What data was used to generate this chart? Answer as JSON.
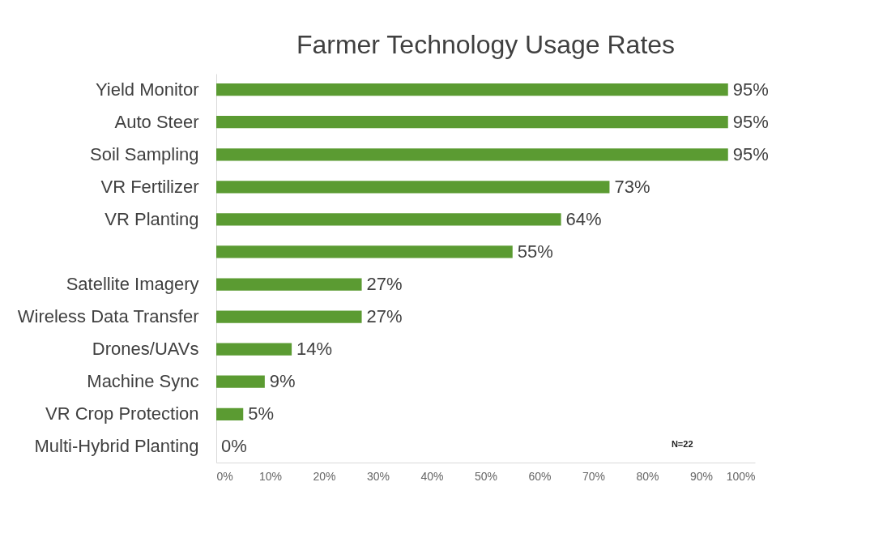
{
  "chart_data": {
    "type": "bar",
    "orientation": "horizontal",
    "title": "Farmer Technology Usage Rates",
    "categories": [
      "Yield Monitor",
      "Auto Steer",
      "Soil Sampling",
      "VR Fertilizer",
      "VR Planting",
      null,
      "Satellite Imagery",
      "Wireless Data Transfer",
      "Drones/UAVs",
      "Machine Sync",
      "VR Crop Protection",
      "Multi-Hybrid Planting"
    ],
    "values": [
      95,
      95,
      95,
      73,
      64,
      55,
      27,
      27,
      14,
      9,
      5,
      0
    ],
    "value_labels": [
      "95%",
      "95%",
      "95%",
      "73%",
      "64%",
      "55%",
      "27%",
      "27%",
      "14%",
      "9%",
      "5%",
      "0%"
    ],
    "color": "#5b9b32",
    "xlim": [
      0,
      100
    ],
    "xticks": [
      {
        "value": 0,
        "label": "0%"
      },
      {
        "value": 10,
        "label": "10%"
      },
      {
        "value": 20,
        "label": "20%"
      },
      {
        "value": 30,
        "label": "30%"
      },
      {
        "value": 40,
        "label": "40%"
      },
      {
        "value": 50,
        "label": "50%"
      },
      {
        "value": 60,
        "label": "60%"
      },
      {
        "value": 70,
        "label": "70%"
      },
      {
        "value": 80,
        "label": "80%"
      },
      {
        "value": 90,
        "label": "90%"
      },
      {
        "value": 100,
        "label": "100%"
      }
    ],
    "annotations": [
      "N=22"
    ],
    "grid": false
  }
}
